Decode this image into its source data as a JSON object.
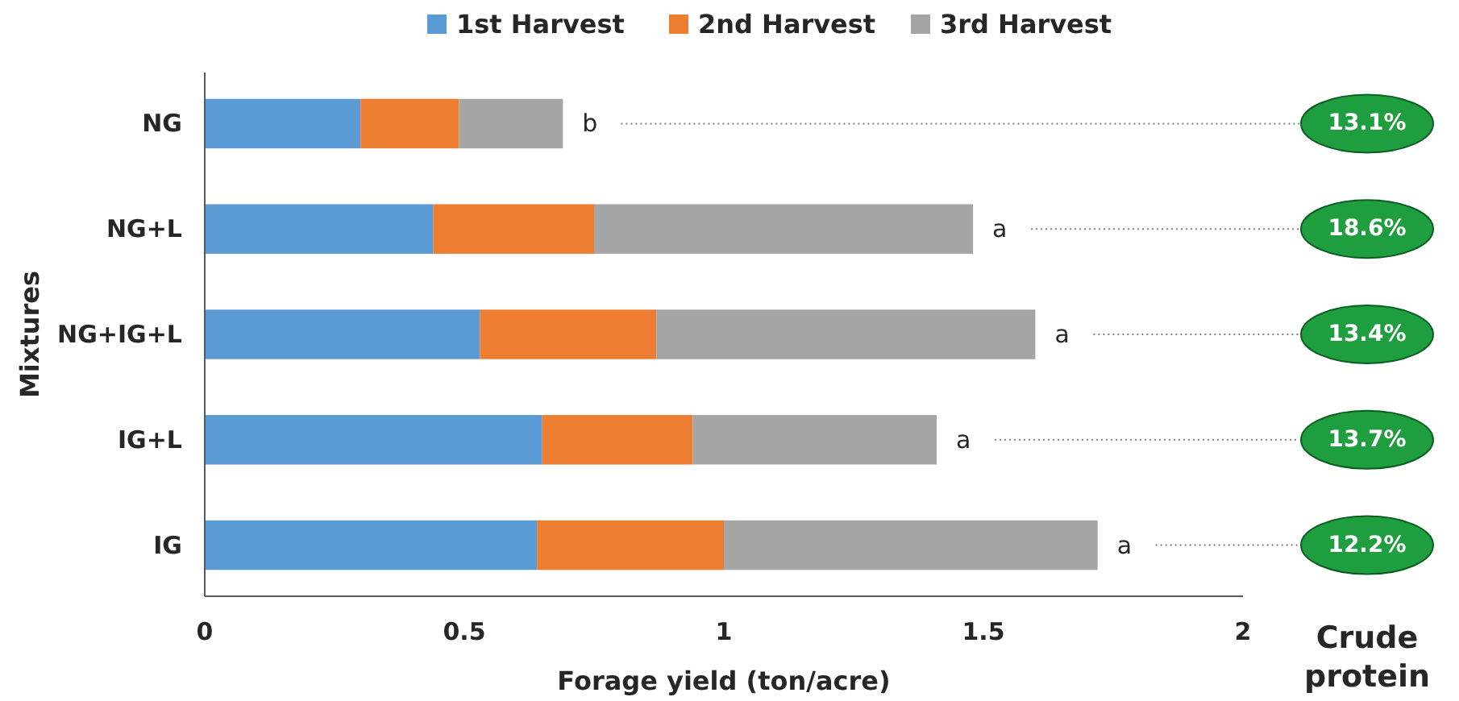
{
  "chart_data": {
    "type": "bar",
    "orientation": "horizontal",
    "stacked": true,
    "xlabel": "Forage yield (ton/acre)",
    "ylabel": "Mixtures",
    "categories": [
      "NG",
      "NG+L",
      "NG+IG+L",
      "IG+L",
      "IG"
    ],
    "series": [
      {
        "name": "1st Harvest",
        "color": "#5b9bd5",
        "values": [
          0.3,
          0.44,
          0.53,
          0.65,
          0.64
        ]
      },
      {
        "name": "2nd Harvest",
        "color": "#ed7d31",
        "values": [
          0.19,
          0.31,
          0.34,
          0.29,
          0.36
        ]
      },
      {
        "name": "3rd Harvest",
        "color": "#a5a5a5",
        "values": [
          0.2,
          0.73,
          0.73,
          0.47,
          0.72
        ]
      }
    ],
    "xlim": [
      0,
      2
    ],
    "xticks": [
      0,
      0.5,
      1,
      1.5,
      2
    ],
    "grid": false,
    "legend": "top",
    "annotations": [
      {
        "text": "b",
        "x": 0.69,
        "y": "NG"
      },
      {
        "text": "a",
        "x": 1.48,
        "y": "NG+L"
      },
      {
        "text": "a",
        "x": 1.6,
        "y": "NG+IG+L"
      },
      {
        "text": "a",
        "x": 1.41,
        "y": "IG+L"
      },
      {
        "text": "a",
        "x": 1.72,
        "y": "IG"
      },
      "13.1%",
      "18.6%",
      "13.4%",
      "13.7%",
      "12.2%",
      "Crude protein"
    ]
  }
}
